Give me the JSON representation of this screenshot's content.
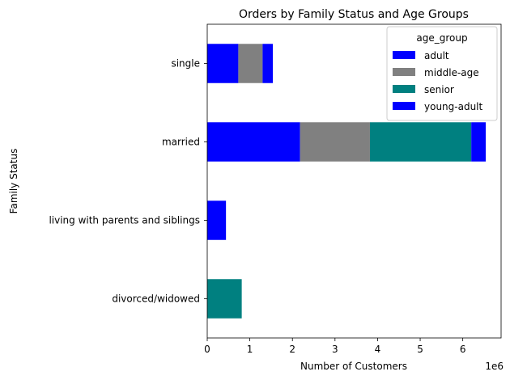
{
  "chart_data": {
    "type": "bar",
    "orientation": "horizontal",
    "stacked": true,
    "title": "Orders by Family Status and Age Groups",
    "xlabel": "Number of Customers",
    "ylabel": "Family Status",
    "x_offset_label": "1e6",
    "xlim": [
      0,
      6.9
    ],
    "xticks": [
      0,
      1,
      2,
      3,
      4,
      5,
      6
    ],
    "categories": [
      "single",
      "married",
      "living with parents and siblings",
      "divorced/widowed"
    ],
    "legend_title": "age_group",
    "legend_position": "top-right",
    "grid": false,
    "series": [
      {
        "name": "adult",
        "color": "#0000ff",
        "values": [
          0.73,
          2.18,
          0.44,
          0
        ]
      },
      {
        "name": "middle-age",
        "color": "#808080",
        "values": [
          0.57,
          1.64,
          0,
          0
        ]
      },
      {
        "name": "senior",
        "color": "#008080",
        "values": [
          0,
          2.38,
          0,
          0.81
        ]
      },
      {
        "name": "young-adult",
        "color": "#0000ff",
        "values": [
          0.24,
          0.34,
          0,
          0
        ]
      }
    ]
  }
}
